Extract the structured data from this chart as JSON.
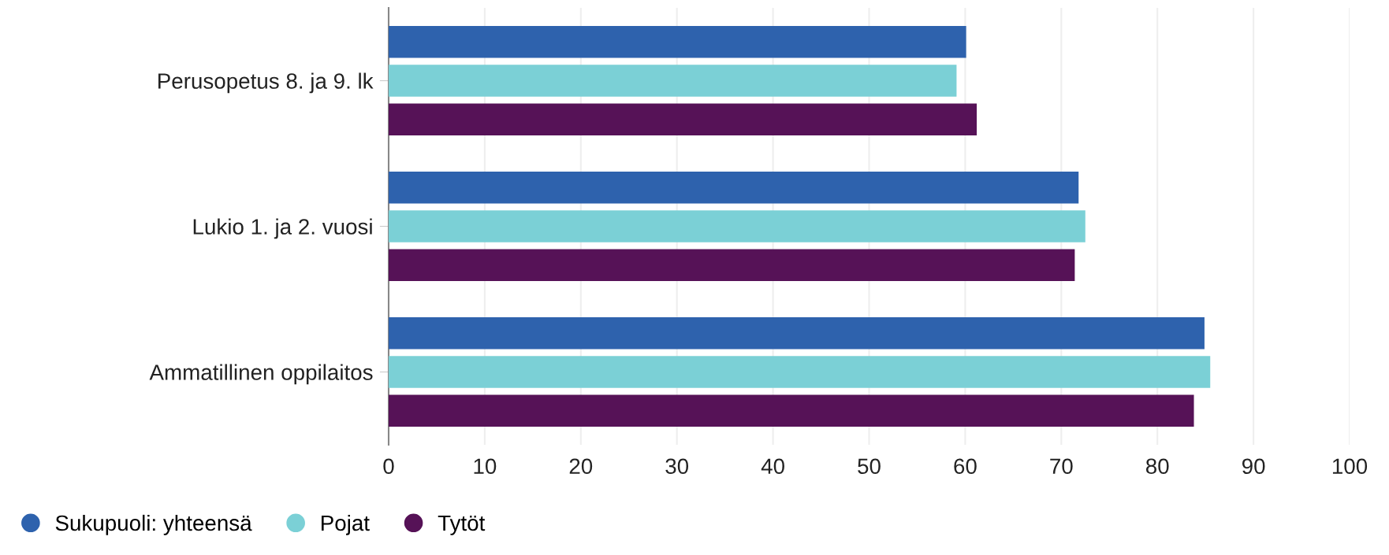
{
  "chart_data": {
    "type": "bar",
    "orientation": "horizontal",
    "categories": [
      "Perusopetus 8. ja 9. lk",
      "Lukio 1. ja 2. vuosi",
      "Ammatillinen oppilaitos"
    ],
    "series": [
      {
        "name": "Sukupuoli: yhteensä",
        "color": "#2e62ad",
        "values": [
          60.1,
          71.8,
          84.9
        ]
      },
      {
        "name": "Pojat",
        "color": "#7bd0d6",
        "values": [
          59.1,
          72.5,
          85.5
        ]
      },
      {
        "name": "Tytöt",
        "color": "#561257",
        "values": [
          61.2,
          71.4,
          83.8
        ]
      }
    ],
    "xlim": [
      0,
      100
    ],
    "xticks": [
      0,
      10,
      20,
      30,
      40,
      50,
      60,
      70,
      80,
      90,
      100
    ],
    "grid": "x",
    "legend": "bottom"
  }
}
